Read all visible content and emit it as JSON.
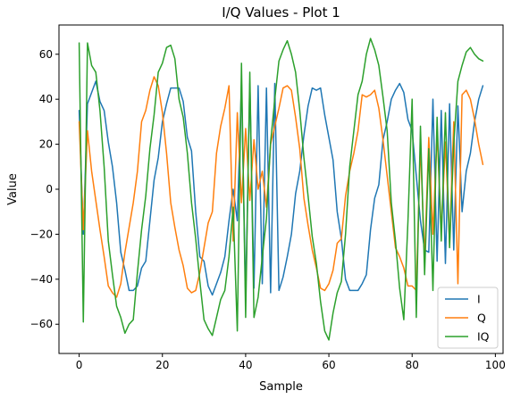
{
  "chart_data": {
    "type": "line",
    "title": "I/Q Values - Plot 1",
    "xlabel": "Sample",
    "ylabel": "Value",
    "xlim": [
      -4.85,
      101.85
    ],
    "ylim": [
      -73,
      73
    ],
    "xticks": [
      0,
      20,
      40,
      60,
      80,
      100
    ],
    "yticks": [
      -60,
      -40,
      -20,
      0,
      20,
      40,
      60
    ],
    "grid": false,
    "legend_position": "lower-right",
    "series": [
      {
        "name": "I",
        "color": "#1f77b4",
        "values": [
          35,
          -20,
          38,
          43,
          48,
          39,
          35,
          21,
          10,
          -6,
          -28,
          -36,
          -45,
          -45,
          -43,
          -35,
          -32,
          -14,
          4,
          14,
          30,
          38,
          45,
          45,
          45,
          39,
          23,
          17,
          -10,
          -30,
          -32,
          -43,
          -47,
          -42,
          -37,
          -30,
          -14,
          0,
          -14,
          47,
          -48,
          47,
          -44,
          46,
          -42,
          45,
          -46,
          47,
          -45,
          -39,
          -30,
          -20,
          -2,
          8,
          24,
          37,
          45,
          44,
          45,
          33,
          23,
          13,
          -10,
          -22,
          -40,
          -45,
          -45,
          -45,
          -42,
          -38,
          -18,
          -4,
          2,
          22,
          30,
          40,
          44,
          47,
          43,
          31,
          26,
          6,
          -14,
          -27,
          -28,
          40,
          -32,
          35,
          -33,
          38,
          -27,
          37,
          -10,
          8,
          16,
          30,
          40,
          46
        ]
      },
      {
        "name": "Q",
        "color": "#ff7f0e",
        "values": [
          30,
          -18,
          26,
          8,
          -5,
          -18,
          -30,
          -43,
          -46,
          -48,
          -42,
          -28,
          -17,
          -6,
          8,
          30,
          35,
          44,
          50,
          46,
          34,
          16,
          -6,
          -17,
          -27,
          -34,
          -44,
          -46,
          -45,
          -37,
          -26,
          -15,
          -10,
          16,
          28,
          36,
          46,
          -23,
          34,
          -6,
          27,
          -5,
          22,
          0,
          8,
          -8,
          20,
          28,
          36,
          45,
          46,
          44,
          32,
          18,
          -4,
          -16,
          -27,
          -35,
          -44,
          -45,
          -42,
          -36,
          -24,
          -22,
          -3,
          8,
          16,
          26,
          42,
          41,
          42,
          44,
          36,
          22,
          6,
          -10,
          -26,
          -30,
          -35,
          -43,
          -43,
          -45,
          20,
          -31,
          23,
          -20,
          25,
          -19,
          21,
          -24,
          30,
          -42,
          42,
          44,
          40,
          31,
          20,
          11
        ]
      },
      {
        "name": "IQ",
        "color": "#2ca02c",
        "values": [
          65,
          -59,
          65,
          55,
          52,
          35,
          10,
          -23,
          -38,
          -52,
          -57,
          -64,
          -60,
          -58,
          -37,
          -18,
          -3,
          18,
          33,
          52,
          56,
          63,
          64,
          58,
          40,
          32,
          16,
          -6,
          -22,
          -41,
          -58,
          -62,
          -65,
          -57,
          -49,
          -45,
          -30,
          -8,
          -63,
          56,
          -57,
          52,
          -57,
          -48,
          -30,
          -13,
          21,
          40,
          57,
          62,
          66,
          60,
          52,
          35,
          14,
          -3,
          -21,
          -33,
          -50,
          -63,
          -67,
          -55,
          -46,
          -41,
          -20,
          10,
          26,
          42,
          48,
          60,
          67,
          62,
          55,
          41,
          26,
          -6,
          -23,
          -44,
          -58,
          -14,
          40,
          -57,
          28,
          -38,
          18,
          -45,
          32,
          -23,
          34,
          -26,
          20,
          48,
          55,
          61,
          63,
          60,
          58,
          57
        ]
      }
    ]
  }
}
